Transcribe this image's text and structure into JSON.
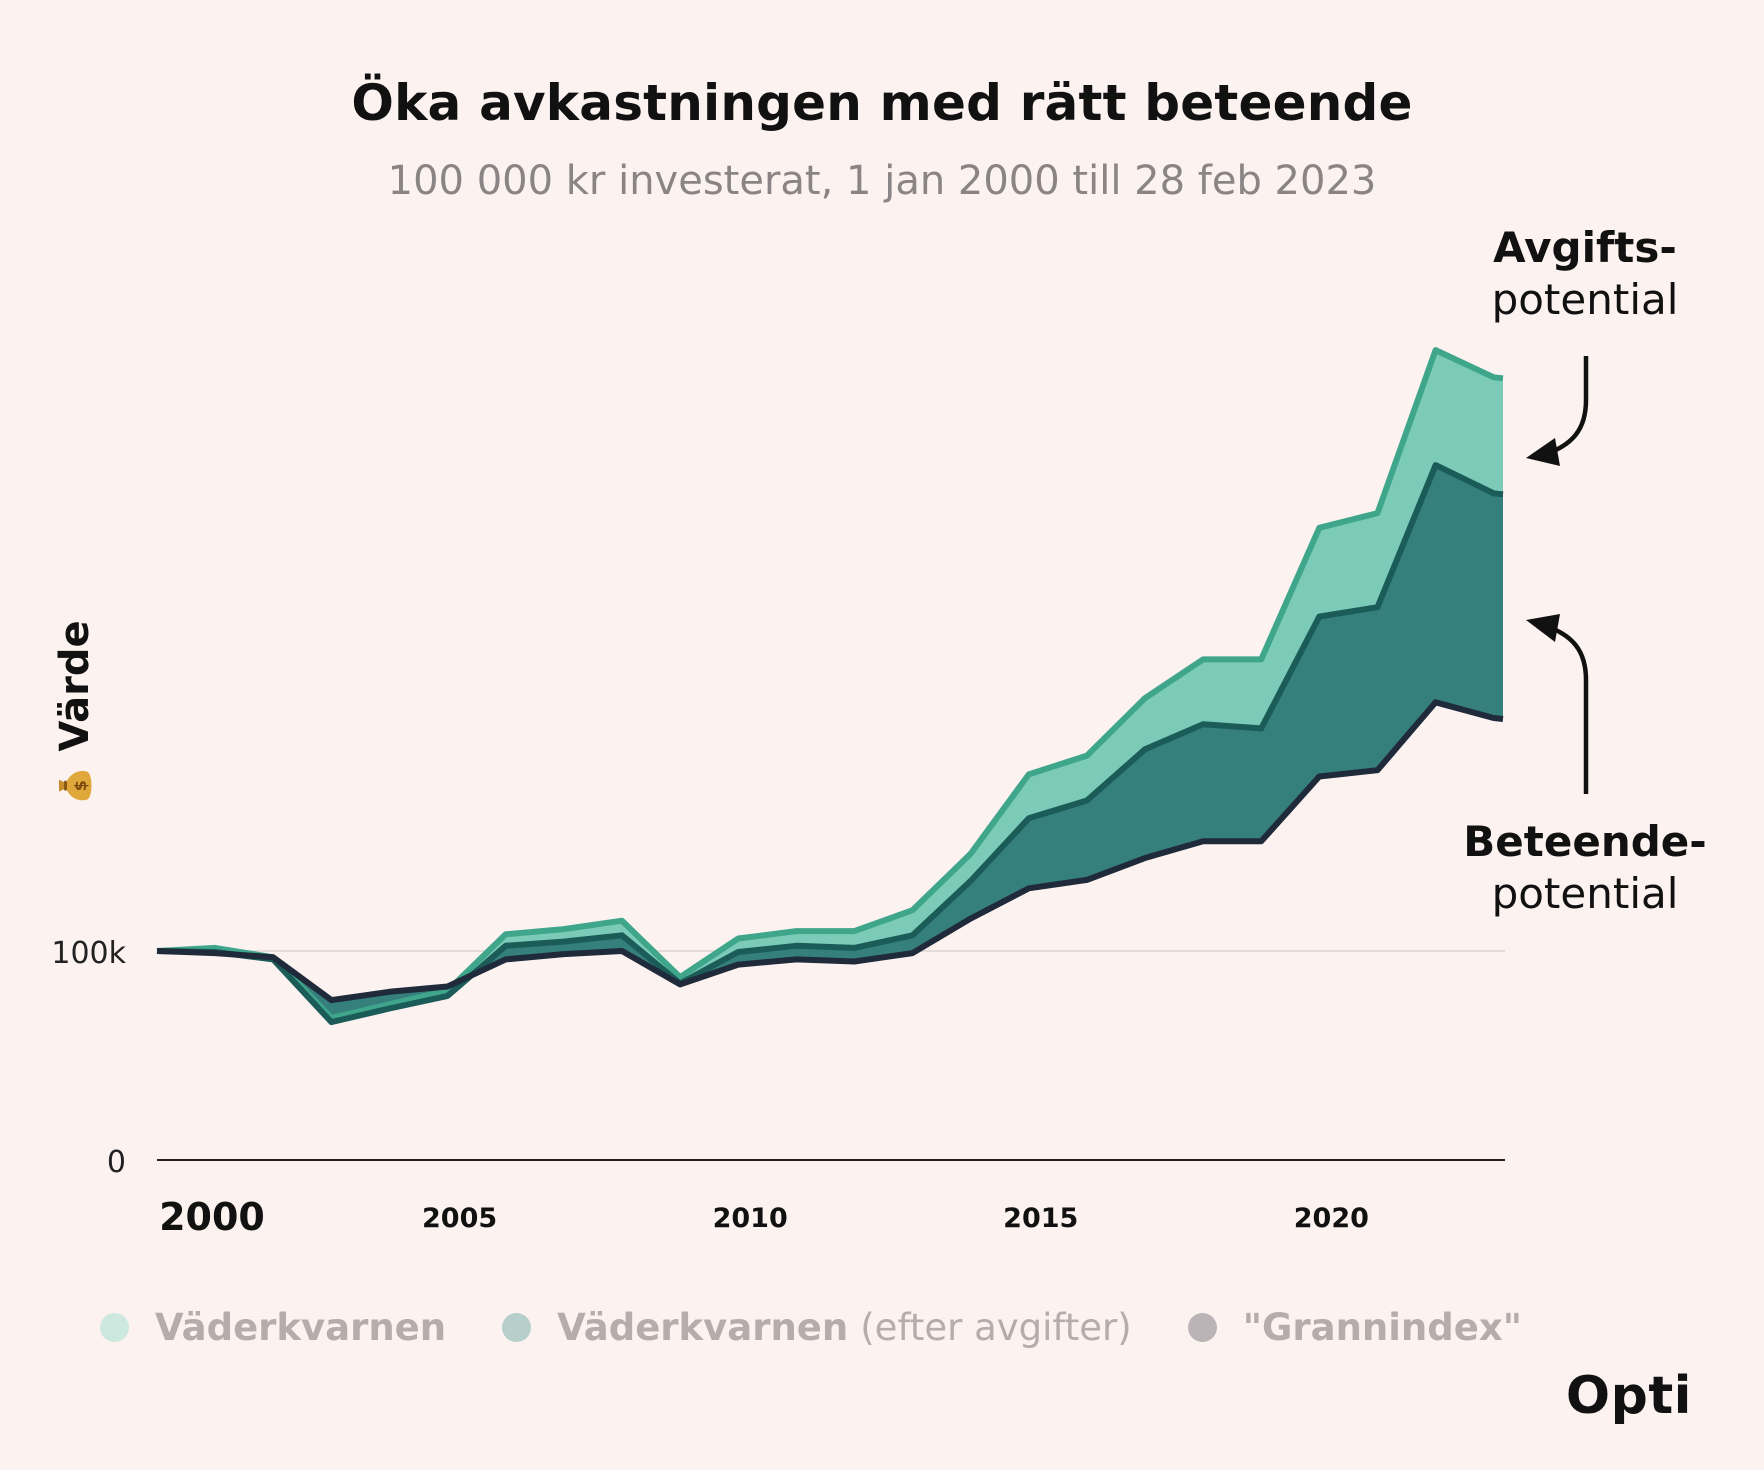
{
  "title": "Öka avkastningen med rätt beteende",
  "subtitle": "100 000 kr investerat, 1 jan 2000 till 28 feb 2023",
  "brand": "Opti",
  "y_axis_label": "Värde",
  "y_axis_icon": "money-bag-icon",
  "callouts": {
    "fee_bold": "Avgifts-",
    "fee_normal": "potential",
    "behavior_bold": "Beteende-",
    "behavior_normal": "potential"
  },
  "legend": [
    {
      "name": "Väderkvarnen",
      "note": "",
      "color": "#cde8df"
    },
    {
      "name": "Väderkvarnen",
      "note": "(efter avgifter)",
      "color": "#b6cfcb"
    },
    {
      "name": "\"Grannindex\"",
      "note": "",
      "color": "#bab4b6"
    }
  ],
  "chart_data": {
    "type": "area",
    "title": "Öka avkastningen med rätt beteende",
    "subtitle": "100 000 kr investerat, 1 jan 2000 till 28 feb 2023",
    "xlabel": "",
    "ylabel": "Värde",
    "x_ticks": [
      2000,
      2005,
      2010,
      2015,
      2020
    ],
    "x_tick_labels": [
      "2000",
      "2005",
      "2010",
      "2015",
      "2020"
    ],
    "y_ticks": [
      0,
      100000
    ],
    "y_tick_labels": [
      "0",
      "100k"
    ],
    "xlim": [
      1999.95,
      2023.2
    ],
    "ylim": [
      0,
      500000
    ],
    "grid": "horizontal",
    "legend_position": "bottom",
    "colors": {
      "gross_fill": "#7bcbb8",
      "gross_line": "#3fa68c",
      "net_fill": "#357f7c",
      "net_line": "#1b5c58",
      "neighbor_line": "#1f2a3a"
    },
    "x": [
      2000,
      2001,
      2002,
      2003,
      2004,
      2005,
      2006,
      2007,
      2008,
      2009,
      2010,
      2011,
      2012,
      2013,
      2014,
      2015,
      2016,
      2017,
      2018,
      2019,
      2020,
      2021,
      2022,
      2023,
      2023.16
    ],
    "series": [
      {
        "name": "Väderkvarnen",
        "values": [
          100000,
          101500,
          97000,
          68000,
          74500,
          81000,
          108000,
          110500,
          114500,
          87500,
          106000,
          109500,
          109500,
          119500,
          146500,
          184500,
          193500,
          221000,
          239500,
          239500,
          302500,
          309500,
          387500,
          374500,
          374000
        ]
      },
      {
        "name": "Väderkvarnen (efter avgifter)",
        "values": [
          100000,
          99500,
          96000,
          66000,
          72500,
          78500,
          102500,
          104500,
          107500,
          84500,
          99500,
          102500,
          101500,
          107500,
          133500,
          163500,
          172000,
          196500,
          208500,
          206500,
          260000,
          264500,
          332500,
          319000,
          318500
        ]
      },
      {
        "name": "\"Grannindex\"",
        "values": [
          100000,
          99000,
          97000,
          76500,
          80500,
          83000,
          96000,
          98500,
          100000,
          84000,
          93500,
          96000,
          95000,
          99000,
          115500,
          130000,
          134000,
          144500,
          152500,
          152500,
          183500,
          186500,
          219000,
          211500,
          211000
        ]
      }
    ]
  }
}
